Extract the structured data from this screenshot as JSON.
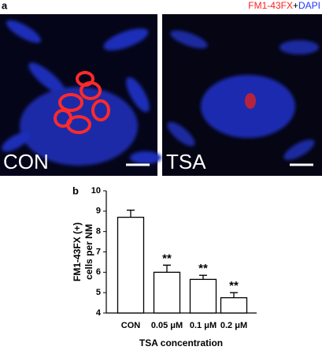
{
  "panel_a": {
    "label": "a",
    "legend": [
      {
        "text": "FM1-43FX",
        "color": "#ff2020"
      },
      {
        "text": "+",
        "color": "#000000"
      },
      {
        "text": "DAPI",
        "color": "#2233ff"
      }
    ],
    "images": [
      "CON",
      "TSA"
    ]
  },
  "chart_data": {
    "type": "bar",
    "panel_label": "b",
    "ylabel": [
      "FM1-43FX (+)",
      "cells per NM"
    ],
    "xlabel": "TSA concentration",
    "categories": [
      "CON",
      "0.05 μM",
      "0.1 μM",
      "0.2 μM"
    ],
    "values": [
      8.7,
      6.0,
      5.65,
      4.75
    ],
    "errors": [
      0.35,
      0.35,
      0.2,
      0.25
    ],
    "annotations": [
      null,
      "**",
      "**",
      "**"
    ],
    "color": "#ffffff",
    "ylim": [
      4,
      10
    ],
    "yticks": [
      4,
      5,
      6,
      7,
      8,
      9,
      10
    ]
  }
}
